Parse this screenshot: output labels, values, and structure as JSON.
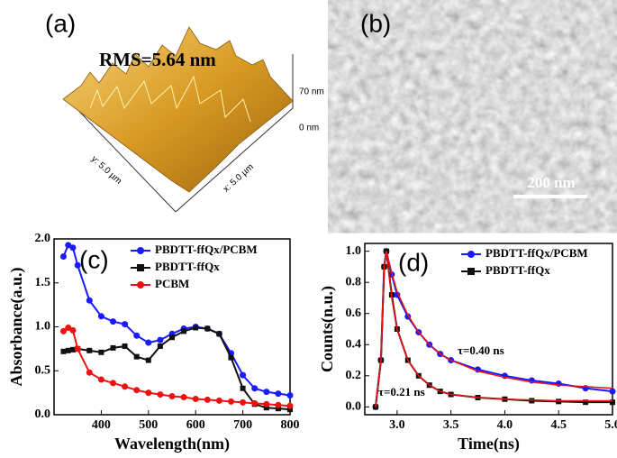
{
  "images": [
    {
      "panel_label": "(a)",
      "annotation": "RMS=5.64 nm",
      "z_labels": [
        "70 nm",
        "0 nm"
      ],
      "axis_labels": [
        "y: 5.0 µm",
        "x: 5.0 µm"
      ]
    },
    {
      "panel_label": "(b)",
      "scale_bar": "200 nm"
    }
  ],
  "chart_data": [
    {
      "type": "line",
      "panel_label": "(c)",
      "x_label": "Wavelength(nm)",
      "y_label": "Absorbance(a.u.)",
      "x": [
        320,
        330,
        340,
        350,
        375,
        400,
        425,
        450,
        475,
        500,
        525,
        550,
        575,
        600,
        625,
        650,
        675,
        700,
        725,
        750,
        775,
        800
      ],
      "series": [
        {
          "name": "PBDTT-ffQx/PCBM",
          "color": "#1a1aff",
          "marker": "circle",
          "values": [
            1.8,
            1.93,
            1.9,
            1.7,
            1.3,
            1.12,
            1.06,
            1.03,
            0.9,
            0.82,
            0.85,
            0.92,
            0.98,
            1.0,
            0.98,
            0.92,
            0.7,
            0.45,
            0.3,
            0.26,
            0.24,
            0.22
          ]
        },
        {
          "name": "PBDTT-ffQx",
          "color": "#111111",
          "marker": "square",
          "values": [
            0.72,
            0.73,
            0.74,
            0.75,
            0.73,
            0.71,
            0.76,
            0.78,
            0.66,
            0.62,
            0.78,
            0.88,
            0.95,
            0.99,
            0.98,
            0.92,
            0.65,
            0.3,
            0.12,
            0.08,
            0.07,
            0.06
          ]
        },
        {
          "name": "PCBM",
          "color": "#ee1111",
          "marker": "circle",
          "values": [
            0.95,
            0.99,
            0.96,
            0.75,
            0.48,
            0.4,
            0.36,
            0.32,
            0.28,
            0.25,
            0.23,
            0.21,
            0.2,
            0.18,
            0.17,
            0.16,
            0.15,
            0.14,
            0.13,
            0.12,
            0.11,
            0.1
          ]
        }
      ],
      "xlim": [
        300,
        800
      ],
      "xticks": [
        400,
        500,
        600,
        700,
        800
      ],
      "ylim": [
        0,
        2.0
      ],
      "yticks": [
        {
          "value": 0,
          "label": "0.0"
        },
        0.5,
        {
          "value": 1,
          "label": "1.0"
        },
        1.5,
        {
          "value": 2,
          "label": "2.0"
        }
      ],
      "legend": "upper right"
    },
    {
      "type": "line",
      "panel_label": "(d)",
      "x_label": "Time(ns)",
      "y_label": "Counts(n.u.)",
      "annotations": [
        "τ=0.40 ns",
        "τ=0.21 ns"
      ],
      "x": [
        2.8,
        2.85,
        2.88,
        2.9,
        2.95,
        3.0,
        3.1,
        3.2,
        3.3,
        3.4,
        3.5,
        3.75,
        4.0,
        4.25,
        4.5,
        4.75,
        5.0
      ],
      "series": [
        {
          "name": "PBDTT-ffQx/PCBM",
          "color": "#1a1aff",
          "marker": "circle",
          "values": [
            0,
            0.3,
            0.9,
            1.0,
            0.85,
            0.72,
            0.58,
            0.48,
            0.4,
            0.34,
            0.3,
            0.24,
            0.2,
            0.17,
            0.15,
            0.12,
            0.1
          ]
        },
        {
          "name": "PBDTT-ffQx",
          "color": "#111111",
          "marker": "square",
          "values": [
            0,
            0.3,
            0.9,
            1.0,
            0.72,
            0.5,
            0.3,
            0.2,
            0.14,
            0.1,
            0.08,
            0.06,
            0.05,
            0.04,
            0.035,
            0.03,
            0.03
          ]
        },
        {
          "color": "#ee1111",
          "values": [
            0,
            0.3,
            0.9,
            1.0,
            0.86,
            0.74,
            0.59,
            0.48,
            0.4,
            0.34,
            0.3,
            0.23,
            0.19,
            0.16,
            0.14,
            0.13,
            0.12
          ]
        },
        {
          "color": "#ee1111",
          "values": [
            0,
            0.3,
            0.9,
            1.0,
            0.7,
            0.5,
            0.3,
            0.2,
            0.14,
            0.1,
            0.08,
            0.06,
            0.05,
            0.045,
            0.04,
            0.04,
            0.04
          ]
        }
      ],
      "xlim": [
        2.7,
        5.0
      ],
      "xticks": [
        {
          "value": 3,
          "label": "3.0"
        },
        3.5,
        {
          "value": 4,
          "label": "4.0"
        },
        4.5,
        {
          "value": 5,
          "label": "5.0"
        }
      ],
      "ylim": [
        -0.05,
        1.05
      ],
      "yticks": [
        {
          "value": 0,
          "label": "0.0"
        },
        0.2,
        0.4,
        0.6,
        0.8,
        {
          "value": 1,
          "label": "1.0"
        }
      ],
      "legend": "upper right"
    }
  ]
}
